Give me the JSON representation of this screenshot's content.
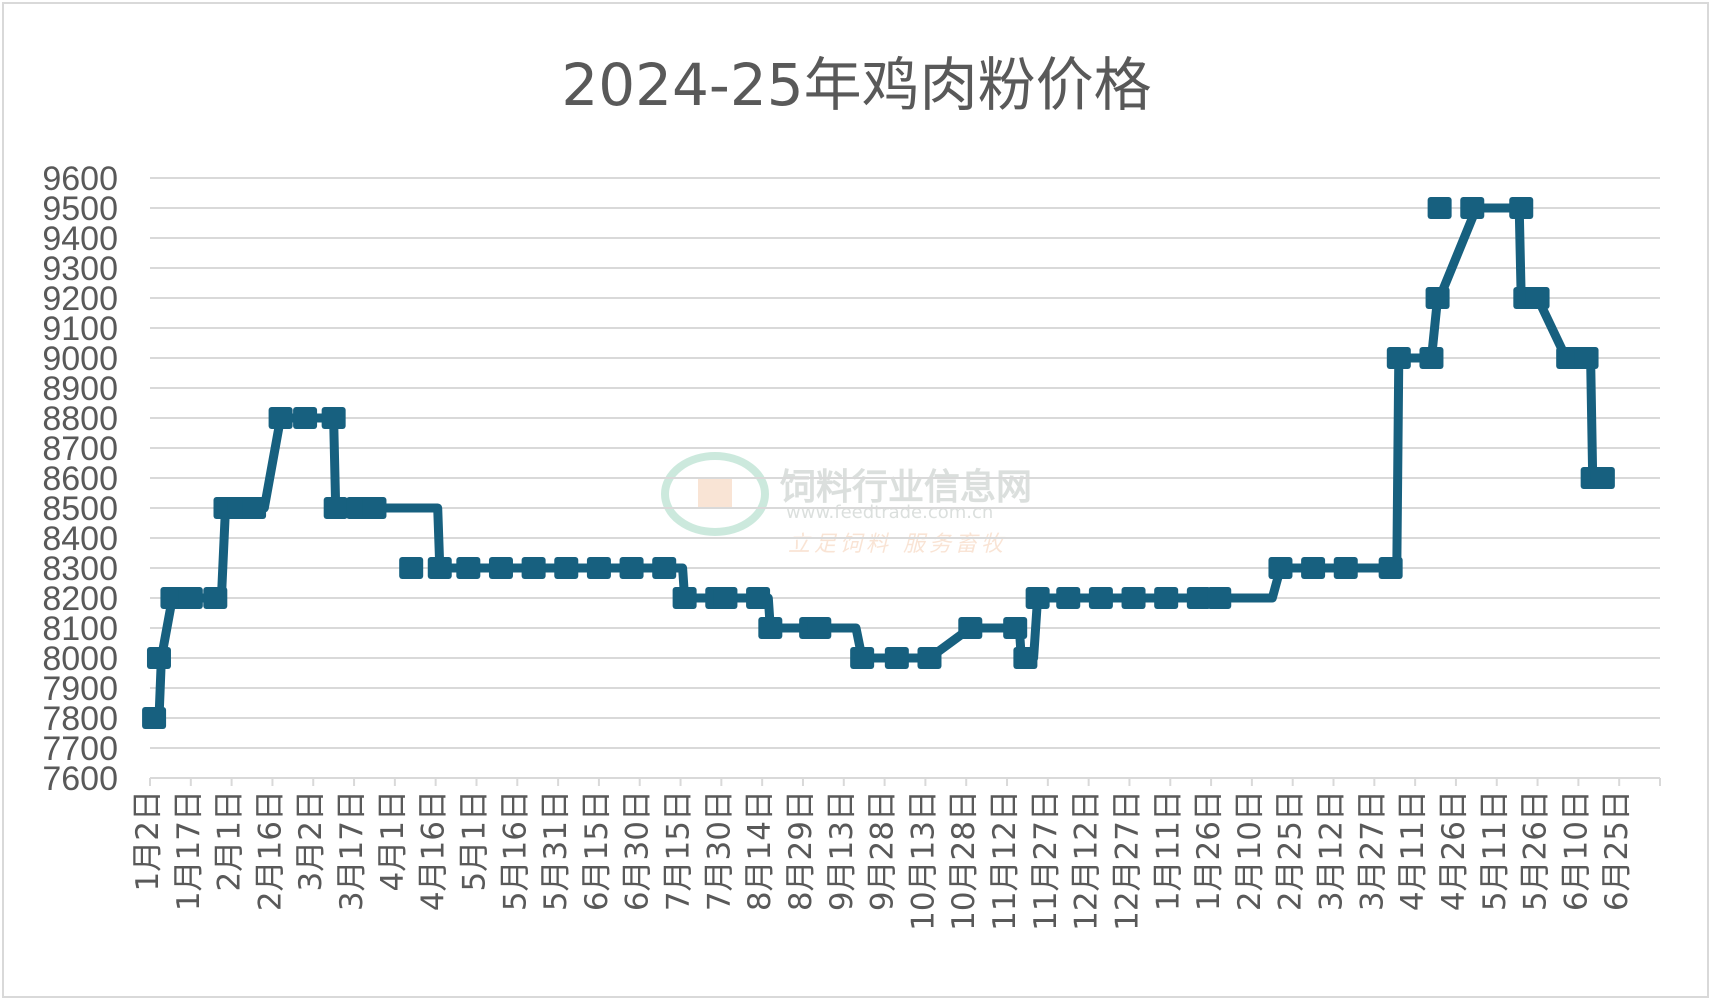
{
  "chart_data": {
    "type": "line",
    "title": "2024-25年鸡肉粉价格",
    "xlabel": "",
    "ylabel": "",
    "ylim": [
      7600,
      9600
    ],
    "ytick_step": 100,
    "grid": true,
    "legend": "none",
    "colors": {
      "line": "#17607f",
      "grid": "#d9d9d9",
      "text": "#595959"
    },
    "x_tick_labels": [
      "1月2日",
      "1月17日",
      "2月1日",
      "2月16日",
      "3月2日",
      "3月17日",
      "4月1日",
      "4月16日",
      "5月1日",
      "5月16日",
      "5月31日",
      "6月15日",
      "6月30日",
      "7月15日",
      "7月30日",
      "8月14日",
      "8月29日",
      "9月13日",
      "9月28日",
      "10月13日",
      "10月28日",
      "11月12日",
      "11月27日",
      "12月12日",
      "12月27日",
      "1月11日",
      "1月26日",
      "2月10日",
      "2月25日",
      "3月12日",
      "3月27日",
      "4月11日",
      "4月26日",
      "5月11日",
      "5月26日",
      "6月10日",
      "6月25日"
    ],
    "series": [
      {
        "x": [
          0.1,
          0.22,
          0.28,
          0.55,
          1.0,
          1.6,
          1.75,
          1.85,
          2.2,
          2.55,
          2.8,
          3.2,
          4.2,
          4.5,
          4.55,
          5.5,
          7.05,
          7.1,
          8.0,
          8.2,
          13.05,
          13.1,
          13.9,
          14.1,
          15.15,
          15.2,
          16.2,
          16.4,
          17.3,
          17.45,
          18.8,
          19.0,
          19.1,
          20.1,
          21.2,
          21.3,
          21.35,
          21.45,
          21.65,
          21.75,
          22.6,
          26.0,
          26.2,
          27.5,
          27.7,
          30.3,
          30.4,
          30.55,
          30.6,
          31.4,
          31.55,
          31.6,
          32.5,
          33.4,
          33.55,
          33.6,
          33.7,
          34.0,
          34.7,
          34.75,
          35.2,
          35.3,
          35.35,
          35.6
        ],
        "values": [
          7800,
          7800,
          8000,
          8200,
          8200,
          8200,
          8200,
          8500,
          8500,
          8500,
          8500,
          8800,
          8800,
          8800,
          8500,
          8500,
          8500,
          8300,
          8300,
          8300,
          8300,
          8200,
          8200,
          8200,
          8200,
          8100,
          8100,
          8100,
          8100,
          8000,
          8000,
          8000,
          8000,
          8100,
          8100,
          8100,
          8000,
          8000,
          8000,
          8200,
          8200,
          8200,
          8200,
          8200,
          8300,
          8300,
          8300,
          8300,
          9000,
          9000,
          9200,
          9200,
          9500,
          9500,
          9500,
          9200,
          9200,
          9200,
          9000,
          9000,
          9000,
          9000,
          8600,
          8600
        ],
        "marker_x": [
          0.1,
          0.22,
          0.55,
          1.0,
          1.6,
          1.85,
          2.2,
          2.55,
          3.2,
          3.8,
          4.5,
          4.55,
          5.1,
          5.5,
          6.4,
          7.1,
          7.8,
          8.6,
          9.4,
          10.2,
          11.0,
          11.8,
          12.6,
          13.1,
          13.9,
          14.1,
          14.9,
          15.2,
          16.2,
          16.4,
          17.45,
          18.3,
          19.1,
          20.1,
          21.2,
          21.45,
          21.75,
          22.5,
          23.3,
          24.1,
          24.9,
          25.7,
          26.2,
          27.7,
          28.5,
          29.3,
          30.4,
          30.6,
          31.4,
          31.55,
          31.6,
          32.4,
          33.6,
          33.7,
          34.0,
          34.75,
          35.2,
          35.35,
          35.6
        ],
        "marker_values": [
          7800,
          8000,
          8200,
          8200,
          8200,
          8500,
          8500,
          8500,
          8800,
          8800,
          8800,
          8500,
          8500,
          8500,
          8300,
          8300,
          8300,
          8300,
          8300,
          8300,
          8300,
          8300,
          8300,
          8200,
          8200,
          8200,
          8200,
          8100,
          8100,
          8100,
          8000,
          8000,
          8000,
          8100,
          8100,
          8000,
          8200,
          8200,
          8200,
          8200,
          8200,
          8200,
          8200,
          8300,
          8300,
          8300,
          8300,
          9000,
          9000,
          9200,
          9500,
          9500,
          9500,
          9200,
          9200,
          9000,
          9000,
          8600,
          8600
        ]
      }
    ]
  },
  "watermark": {
    "title": "饲料行业信息网",
    "url": "www.feedtrade.com.cn",
    "slogan": "立足饲料    服务畜牧"
  }
}
